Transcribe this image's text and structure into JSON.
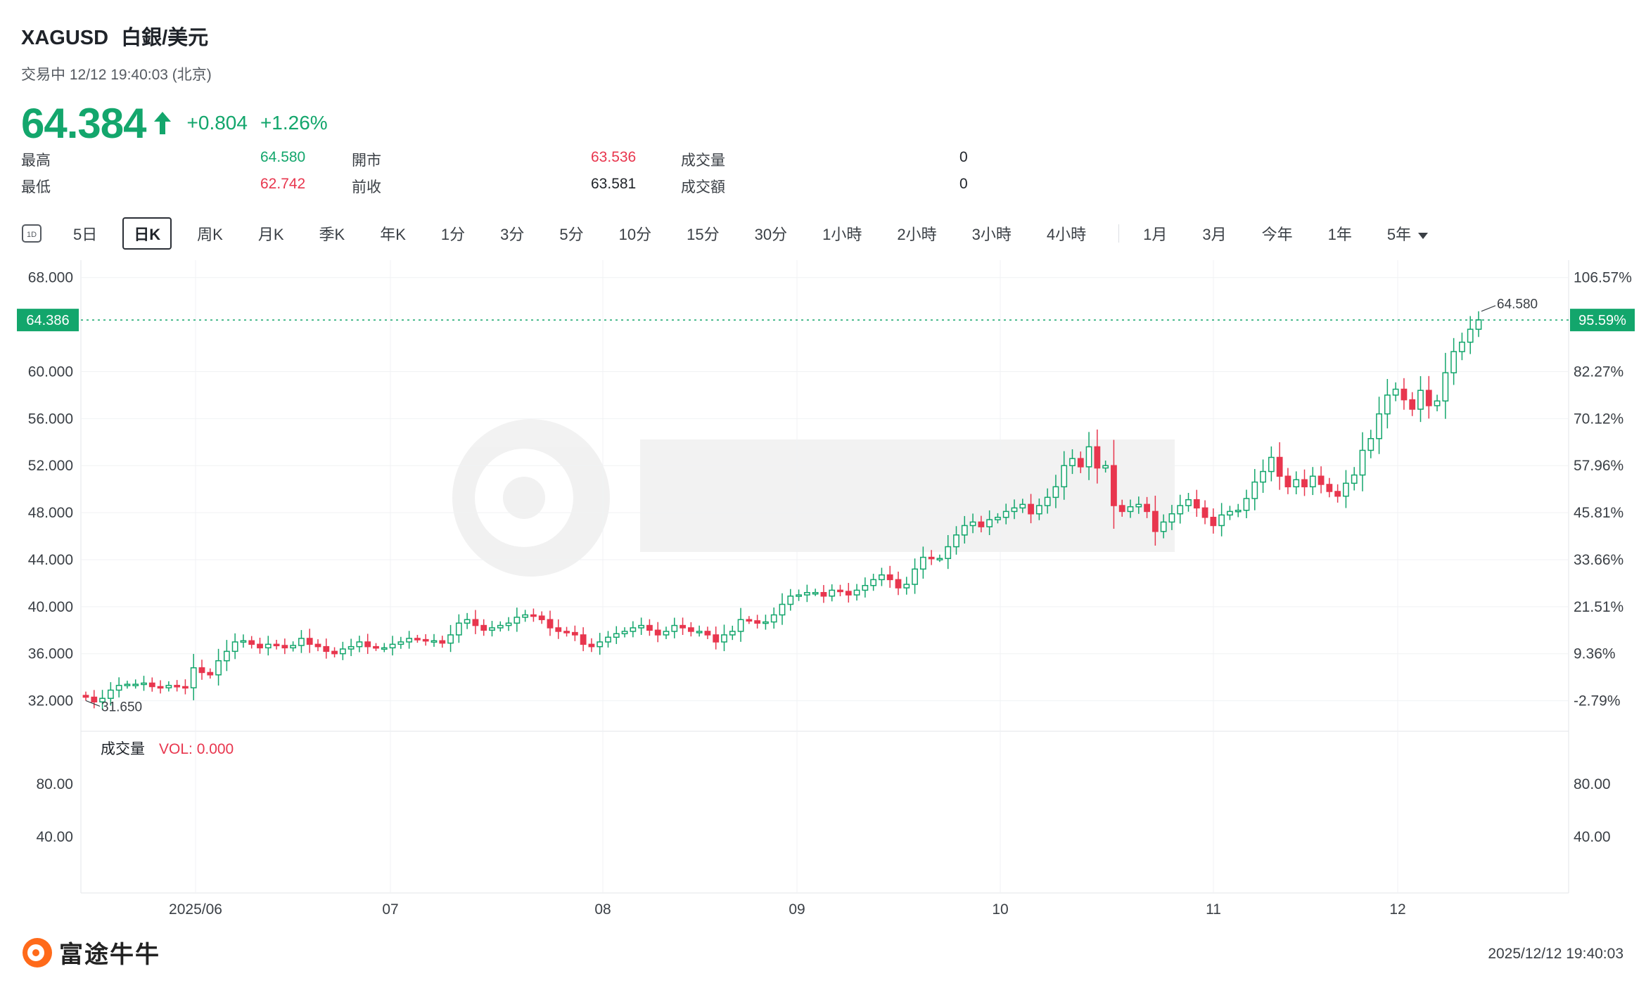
{
  "header": {
    "symbol": "XAGUSD",
    "name": "白銀/美元",
    "status_line": "交易中 12/12 19:40:03 (北京)",
    "price": "64.384",
    "change": "+0.804",
    "change_pct": "+1.26%"
  },
  "stats": {
    "high_label": "最高",
    "high": "64.580",
    "low_label": "最低",
    "low": "62.742",
    "open_label": "開市",
    "open": "63.536",
    "prev_close_label": "前收",
    "prev_close": "63.581",
    "volume_label": "成交量",
    "volume": "0",
    "turnover_label": "成交額",
    "turnover": "0"
  },
  "tabs": [
    {
      "label": "5日"
    },
    {
      "label": "日K",
      "active": true
    },
    {
      "label": "周K"
    },
    {
      "label": "月K"
    },
    {
      "label": "季K"
    },
    {
      "label": "年K"
    },
    {
      "label": "1分"
    },
    {
      "label": "3分"
    },
    {
      "label": "5分"
    },
    {
      "label": "10分"
    },
    {
      "label": "15分"
    },
    {
      "label": "30分"
    },
    {
      "label": "1小時"
    },
    {
      "label": "2小時"
    },
    {
      "label": "3小時"
    },
    {
      "label": "4小時"
    }
  ],
  "range_tabs": [
    {
      "label": "1月"
    },
    {
      "label": "3月"
    },
    {
      "label": "今年"
    },
    {
      "label": "1年"
    },
    {
      "label": "5年"
    }
  ],
  "tab_icon_label": "1D",
  "chart_data": {
    "type": "candlestick",
    "title": "",
    "ylim": [
      30.0,
      69.0
    ],
    "y_ticks": [
      "68.000",
      "60.000",
      "56.000",
      "52.000",
      "48.000",
      "44.000",
      "40.000",
      "36.000",
      "32.000"
    ],
    "y_tick_values": [
      68,
      60,
      56,
      52,
      48,
      44,
      40,
      36,
      32
    ],
    "pct_ticks": [
      "106.57%",
      "82.27%",
      "70.12%",
      "57.96%",
      "45.81%",
      "33.66%",
      "21.51%",
      "9.36%",
      "-2.79%"
    ],
    "current_price_label": "64.386",
    "current_pct_label": "95.59%",
    "current_price": 64.386,
    "max_annotation": "64.580",
    "min_annotation": "31.650",
    "x_ticks": [
      "2025/06",
      "07",
      "08",
      "09",
      "10",
      "11",
      "12"
    ],
    "volume_title": "成交量",
    "volume_value": "VOL: 0.000",
    "volume_ticks": [
      "80.00",
      "40.00"
    ],
    "volume_tick_values": [
      80,
      40
    ],
    "up_color": "#13a66c",
    "down_color": "#e8364e",
    "closes": [
      32.3,
      31.9,
      32.2,
      32.9,
      33.3,
      33.4,
      33.4,
      33.5,
      33.2,
      33.1,
      33.3,
      33.2,
      33.1,
      34.8,
      34.4,
      34.2,
      35.4,
      36.2,
      37.0,
      37.1,
      36.8,
      36.5,
      36.8,
      36.7,
      36.5,
      36.7,
      37.3,
      36.8,
      36.6,
      36.2,
      36.0,
      36.4,
      36.6,
      37.0,
      36.6,
      36.5,
      36.5,
      36.8,
      37.0,
      37.3,
      37.2,
      37.1,
      37.1,
      36.9,
      37.6,
      38.6,
      38.9,
      38.4,
      38.0,
      38.2,
      38.4,
      38.6,
      39.1,
      39.3,
      39.2,
      38.9,
      38.2,
      37.9,
      37.8,
      37.6,
      36.8,
      36.6,
      37.0,
      37.4,
      37.7,
      37.9,
      38.2,
      38.4,
      38.0,
      37.6,
      37.9,
      38.4,
      38.2,
      37.9,
      37.9,
      37.6,
      37.0,
      37.6,
      37.9,
      38.9,
      38.8,
      38.6,
      38.7,
      39.3,
      40.2,
      40.9,
      41.0,
      41.2,
      41.2,
      40.9,
      41.4,
      41.3,
      41.0,
      41.4,
      41.8,
      42.3,
      42.7,
      42.3,
      41.6,
      41.9,
      43.2,
      44.2,
      44.1,
      44.1,
      45.1,
      46.1,
      46.9,
      47.2,
      46.8,
      47.4,
      47.6,
      48.1,
      48.4,
      48.7,
      47.9,
      48.6,
      49.3,
      50.2,
      52.0,
      52.6,
      51.9,
      53.6,
      51.8,
      52.0,
      48.6,
      48.1,
      48.5,
      48.7,
      48.1,
      46.4,
      47.2,
      47.9,
      48.6,
      49.1,
      48.4,
      47.6,
      46.9,
      47.8,
      48.1,
      48.2,
      49.2,
      50.6,
      51.5,
      52.7,
      51.1,
      50.2,
      50.8,
      50.2,
      51.1,
      50.4,
      49.8,
      49.4,
      50.5,
      51.2,
      53.3,
      54.3,
      56.4,
      58.0,
      58.5,
      57.6,
      56.8,
      58.4,
      57.1,
      57.5,
      59.9,
      61.7,
      62.5,
      63.6,
      64.4
    ],
    "volume_series": []
  },
  "footer": {
    "logo_text": "富途牛牛",
    "timestamp": "2025/12/12 19:40:03"
  }
}
